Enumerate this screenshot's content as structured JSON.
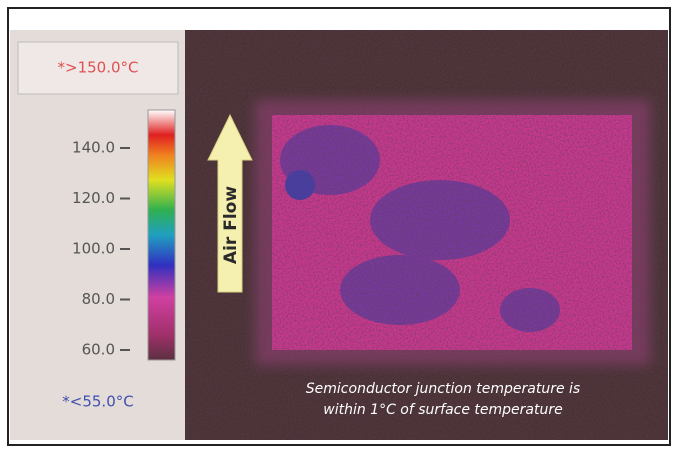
{
  "scale": {
    "max_label": "*>150.0°C",
    "ticks": [
      "140.0",
      "120.0",
      "100.0",
      "80.0",
      "60.0"
    ],
    "min_label": "*<55.0°C"
  },
  "image": {
    "arrow_label": "Air Flow",
    "caption_lines": [
      "Semiconductor junction temperature is",
      "within 1°C of surface temperature"
    ]
  }
}
